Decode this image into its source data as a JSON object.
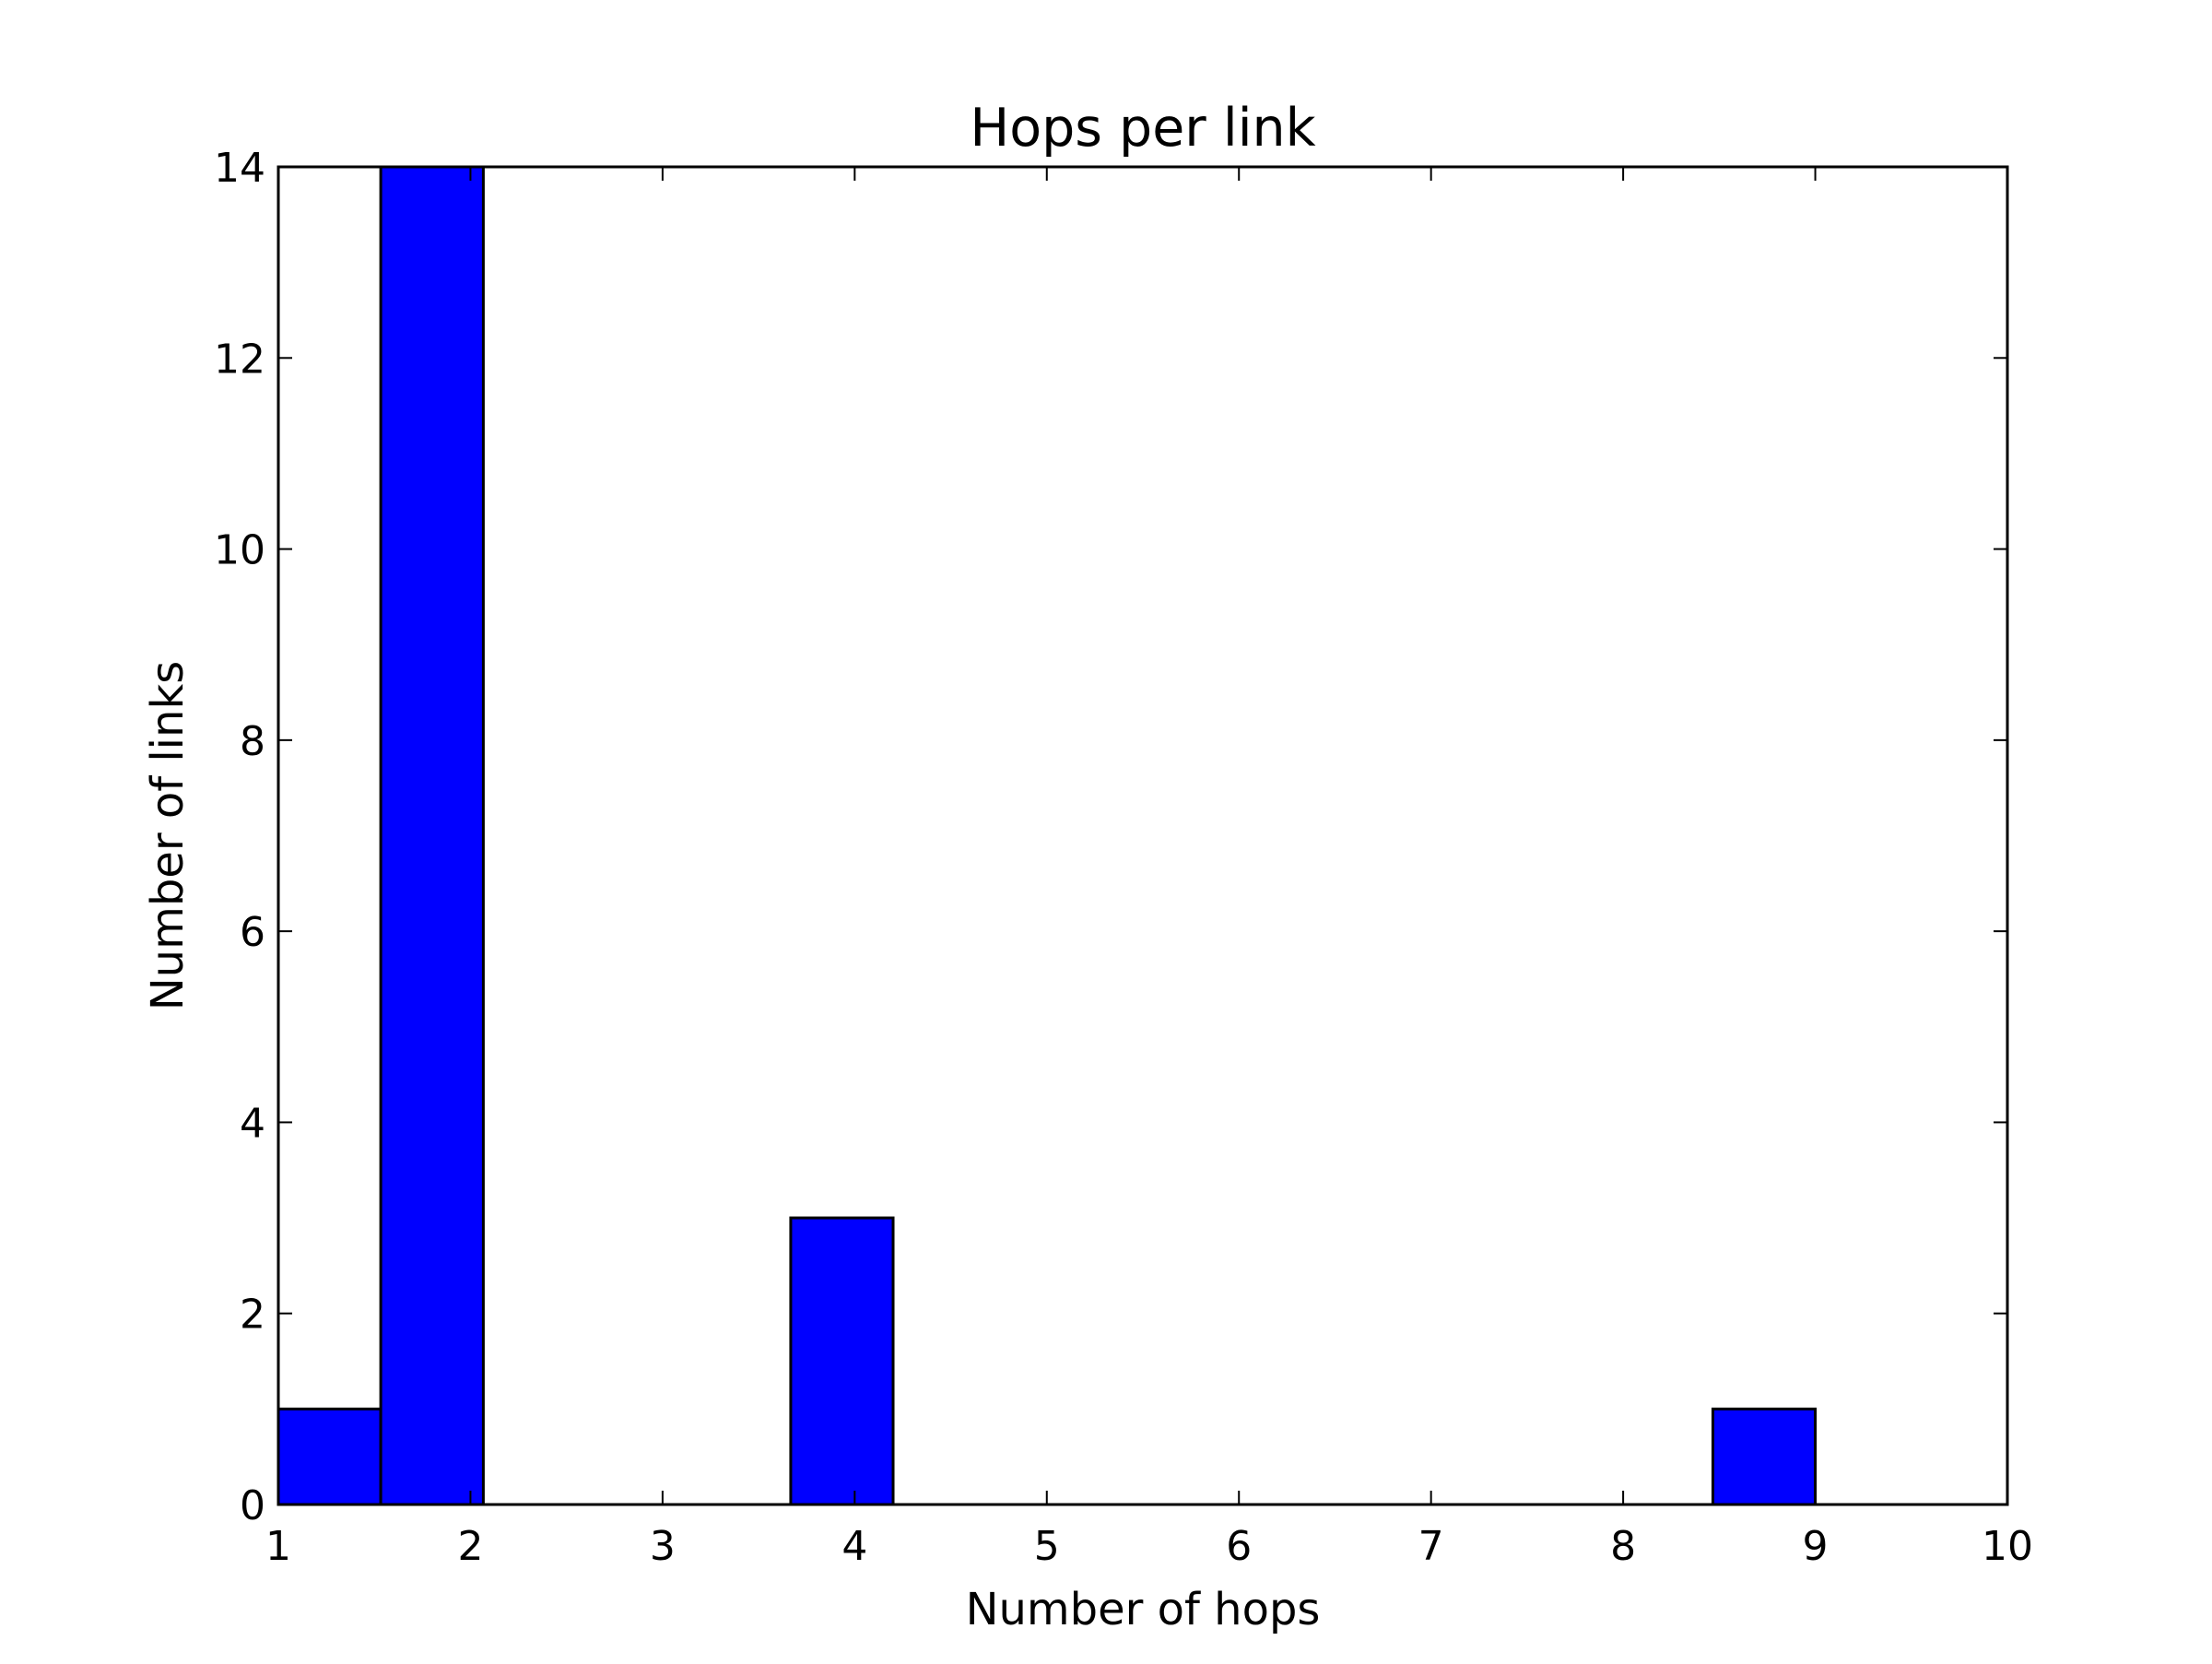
{
  "chart_data": {
    "type": "bar",
    "title": "Hops per link",
    "xlabel": "Number of hops",
    "ylabel": "Number of links",
    "xlim": [
      1,
      10
    ],
    "ylim": [
      0,
      14
    ],
    "x_ticks": [
      "1",
      "2",
      "3",
      "4",
      "5",
      "6",
      "7",
      "8",
      "9",
      "10"
    ],
    "y_ticks": [
      "0",
      "2",
      "4",
      "6",
      "8",
      "10",
      "12",
      "14"
    ],
    "bins": [
      {
        "start": 1.0,
        "end": 1.533,
        "value": 1
      },
      {
        "start": 1.533,
        "end": 2.067,
        "value": 14
      },
      {
        "start": 3.667,
        "end": 4.2,
        "value": 3
      },
      {
        "start": 8.467,
        "end": 9.0,
        "value": 1
      }
    ],
    "grid": false,
    "legend": "none",
    "colors": {
      "bar_fill": "#0000ff",
      "bar_edge": "#000000",
      "axes": "#000000"
    }
  }
}
